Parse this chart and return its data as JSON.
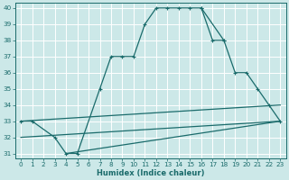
{
  "xlabel": "Humidex (Indice chaleur)",
  "bg_color": "#cce8e8",
  "grid_color": "#b0d0d0",
  "line_color": "#1a6b6b",
  "xlim": [
    -0.5,
    23.5
  ],
  "ylim": [
    30.7,
    40.3
  ],
  "xticks": [
    0,
    1,
    2,
    3,
    4,
    5,
    6,
    7,
    8,
    9,
    10,
    11,
    12,
    13,
    14,
    15,
    16,
    17,
    18,
    19,
    20,
    21,
    22,
    23
  ],
  "yticks": [
    31,
    32,
    33,
    34,
    35,
    36,
    37,
    38,
    39,
    40
  ],
  "series_marked": [
    {
      "x": [
        0,
        1,
        3,
        4,
        5,
        7,
        8,
        9,
        10,
        11,
        12,
        13,
        14,
        15,
        16,
        18
      ],
      "y": [
        33,
        33,
        32,
        31,
        31,
        35,
        37,
        37,
        37,
        39,
        40,
        40,
        40,
        40,
        40,
        38
      ]
    },
    {
      "x": [
        16,
        17,
        18,
        19,
        20,
        21,
        22,
        23
      ],
      "y": [
        40,
        38,
        38,
        36,
        36,
        35,
        34,
        33
      ]
    }
  ],
  "series_plain": [
    {
      "x": [
        0,
        23
      ],
      "y": [
        33,
        34
      ]
    },
    {
      "x": [
        0,
        23
      ],
      "y": [
        32,
        33
      ]
    },
    {
      "x": [
        4,
        23
      ],
      "y": [
        31,
        33
      ]
    }
  ]
}
